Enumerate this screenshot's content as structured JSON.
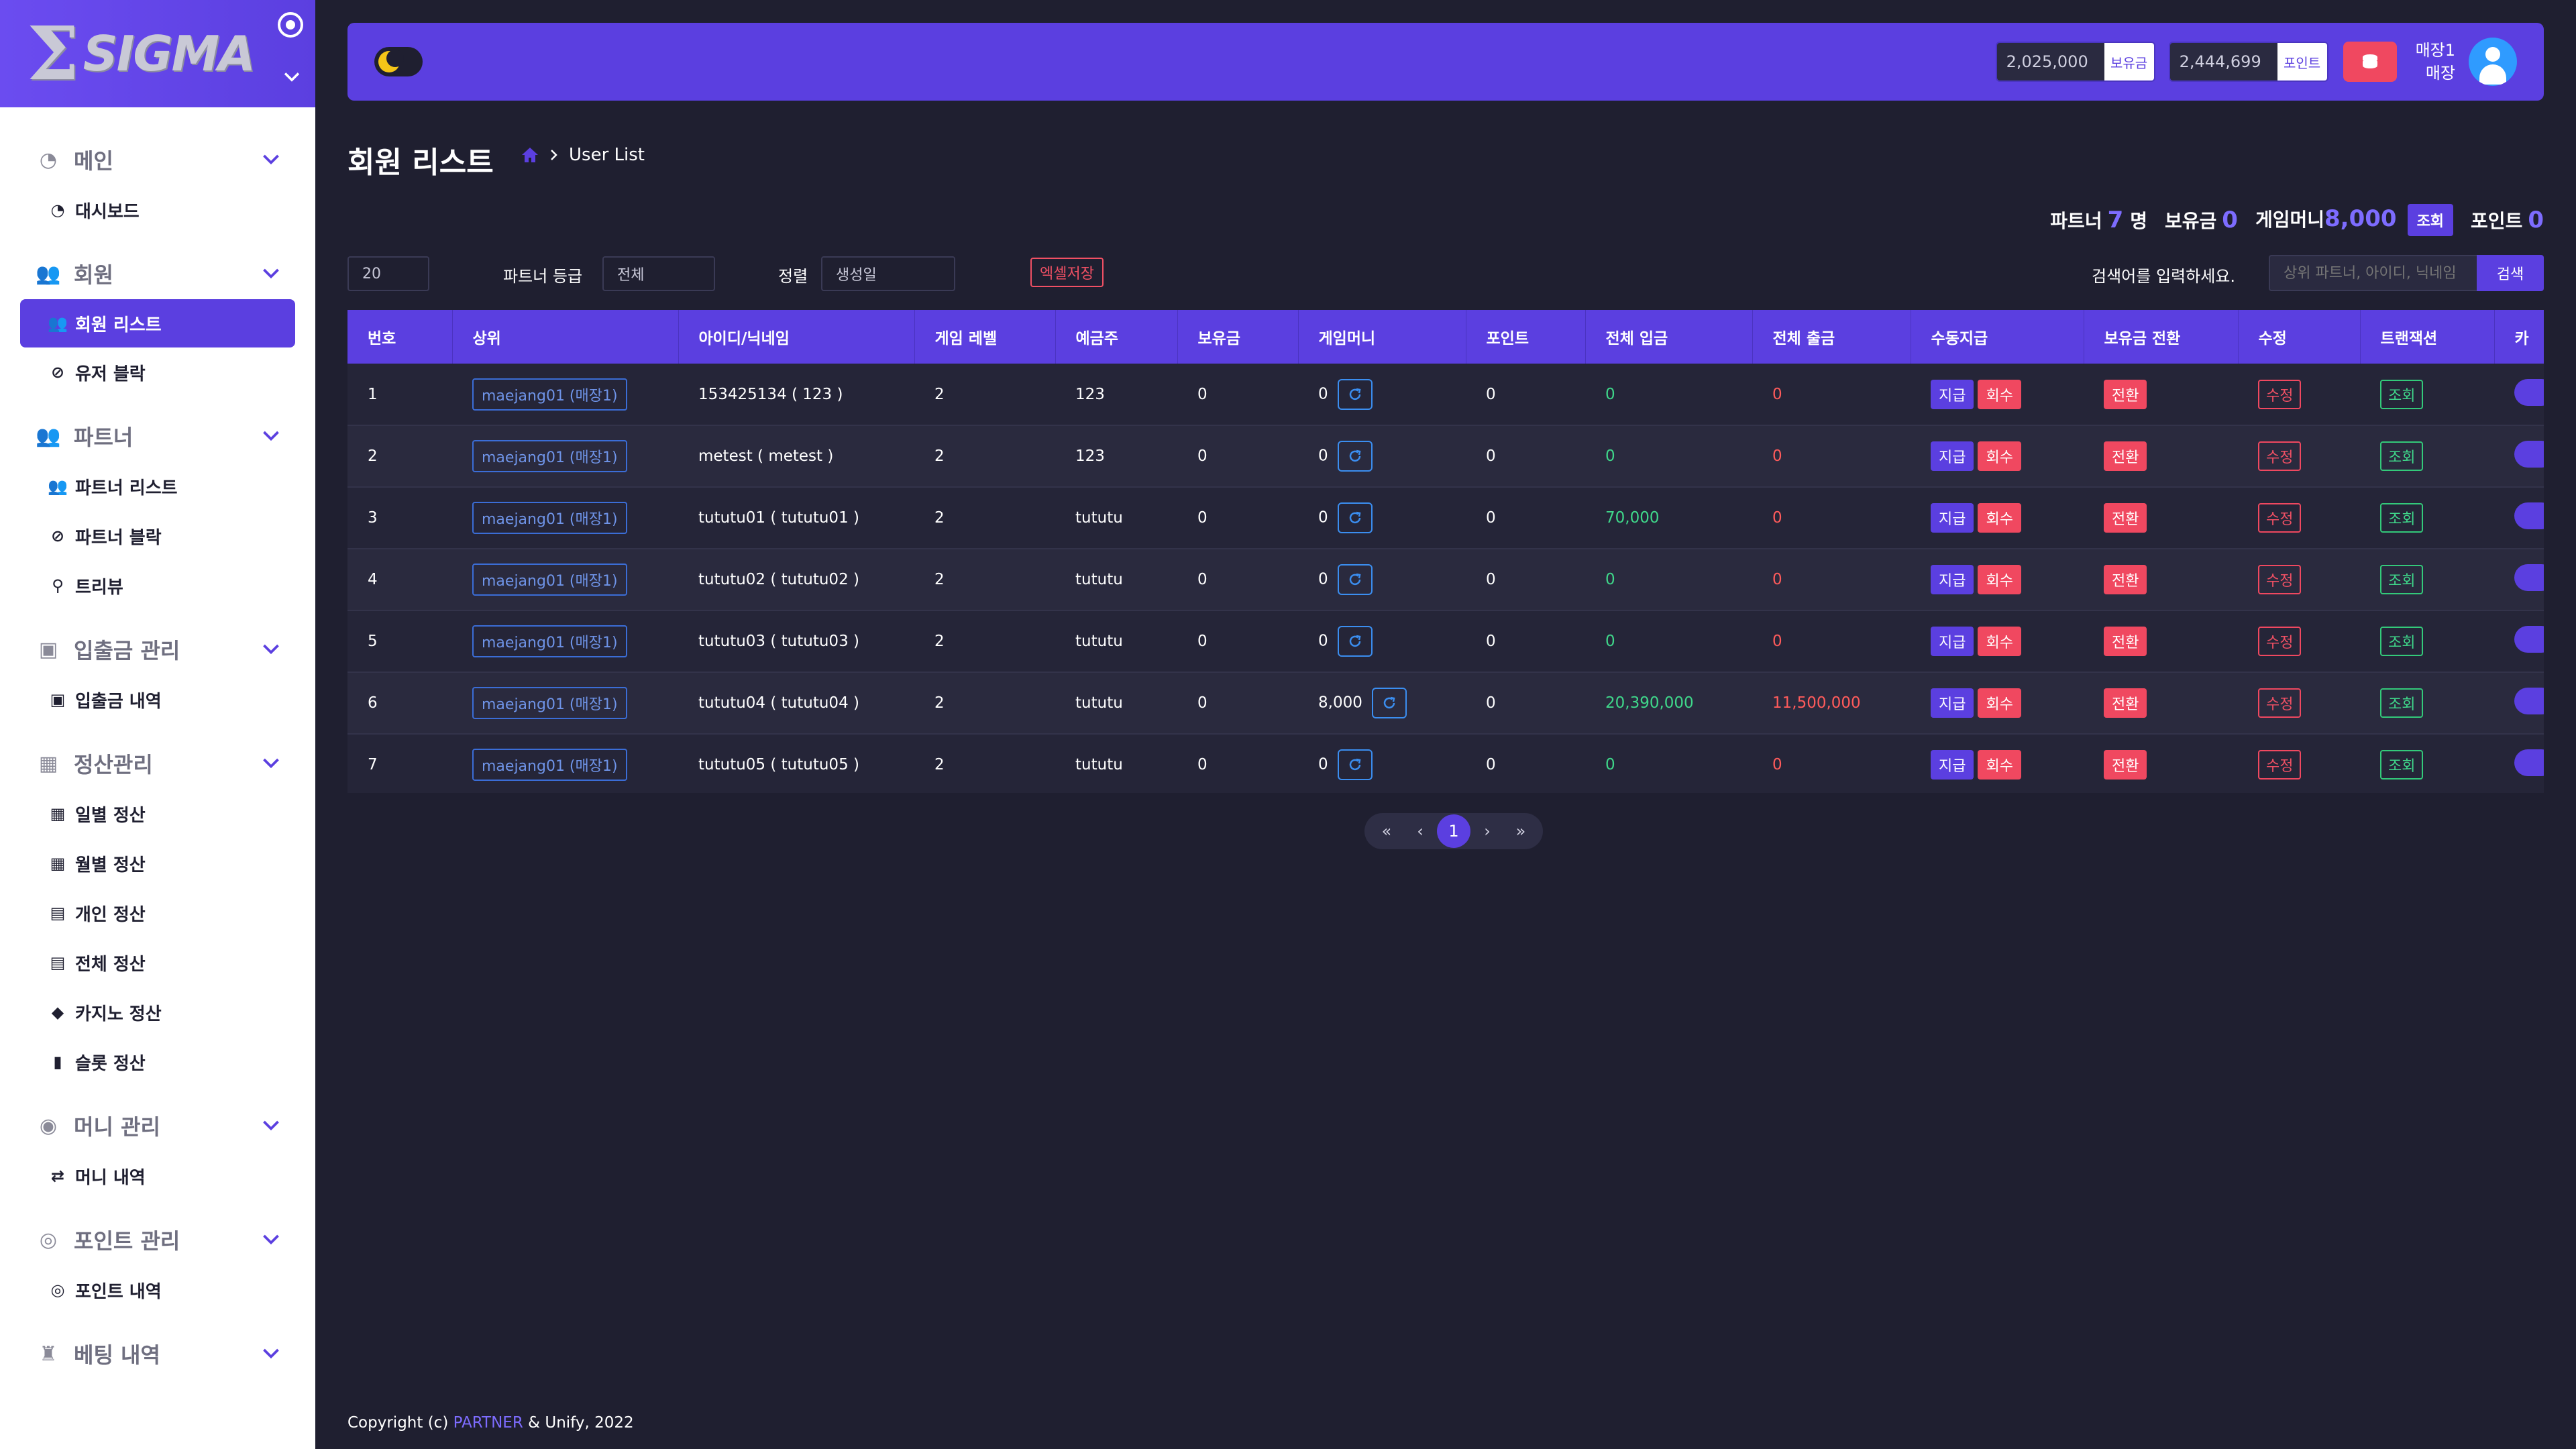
{
  "brand": {
    "sigma": "Σ",
    "name": "SIGMA"
  },
  "sidebar": {
    "groups": [
      {
        "label": "메인",
        "items": [
          {
            "label": "대시보드"
          }
        ]
      },
      {
        "label": "회원",
        "items": [
          {
            "label": "회원 리스트"
          },
          {
            "label": "유저 블락"
          }
        ]
      },
      {
        "label": "파트너",
        "items": [
          {
            "label": "파트너 리스트"
          },
          {
            "label": "파트너 블락"
          },
          {
            "label": "트리뷰"
          }
        ]
      },
      {
        "label": "입출금 관리",
        "items": [
          {
            "label": "입출금 내역"
          }
        ]
      },
      {
        "label": "정산관리",
        "items": [
          {
            "label": "일별 정산"
          },
          {
            "label": "월별 정산"
          },
          {
            "label": "개인 정산"
          },
          {
            "label": "전체 정산"
          },
          {
            "label": "카지노 정산"
          },
          {
            "label": "슬롯 정산"
          }
        ]
      },
      {
        "label": "머니 관리",
        "items": [
          {
            "label": "머니 내역"
          }
        ]
      },
      {
        "label": "포인트 관리",
        "items": [
          {
            "label": "포인트 내역"
          }
        ]
      },
      {
        "label": "베팅 내역",
        "items": []
      }
    ]
  },
  "header": {
    "balance_value": "2,025,000",
    "balance_label": "보유금",
    "point_value": "2,444,699",
    "point_label": "포인트",
    "user_line1": "매장1",
    "user_line2": "매장"
  },
  "page": {
    "title": "회원 리스트",
    "breadcrumb": "User List"
  },
  "summary": {
    "partner_label": "파트너",
    "partner_count": "7",
    "partner_unit": "명",
    "balance_label": "보유금",
    "balance_value": "0",
    "game_money_label": "게임머니",
    "game_money_value": "8,000",
    "lookup_label": "조회",
    "point_label": "포인트",
    "point_value": "0"
  },
  "filters": {
    "page_size": "20",
    "grade_label": "파트너 등급",
    "grade_value": "전체",
    "sort_label": "정렬",
    "sort_value": "생성일",
    "excel_label": "엑셀저장",
    "search_prompt": "검색어를 입력하세요.",
    "search_placeholder": "상위 파트너, 아이디, 닉네임",
    "search_button": "검색"
  },
  "table": {
    "headers": [
      "번호",
      "상위",
      "아이디/닉네임",
      "게임 레벨",
      "예금주",
      "보유금",
      "게임머니",
      "포인트",
      "전체 입금",
      "전체 출금",
      "수동지급",
      "보유금 전환",
      "수정",
      "트랜잭션",
      "카"
    ],
    "action_labels": {
      "give": "지급",
      "take": "회수",
      "convert": "전환",
      "edit": "수정",
      "view": "조회"
    },
    "rows": [
      {
        "no": "1",
        "parent": "maejang01 (매장1)",
        "id": "153425134 ( 123 )",
        "level": "2",
        "holder": "123",
        "balance": "0",
        "game_money": "0",
        "point": "0",
        "deposit": "0",
        "withdraw": "0"
      },
      {
        "no": "2",
        "parent": "maejang01 (매장1)",
        "id": "metest ( metest )",
        "level": "2",
        "holder": "123",
        "balance": "0",
        "game_money": "0",
        "point": "0",
        "deposit": "0",
        "withdraw": "0"
      },
      {
        "no": "3",
        "parent": "maejang01 (매장1)",
        "id": "tututu01 ( tututu01 )",
        "level": "2",
        "holder": "tututu",
        "balance": "0",
        "game_money": "0",
        "point": "0",
        "deposit": "70,000",
        "withdraw": "0"
      },
      {
        "no": "4",
        "parent": "maejang01 (매장1)",
        "id": "tututu02 ( tututu02 )",
        "level": "2",
        "holder": "tututu",
        "balance": "0",
        "game_money": "0",
        "point": "0",
        "deposit": "0",
        "withdraw": "0"
      },
      {
        "no": "5",
        "parent": "maejang01 (매장1)",
        "id": "tututu03 ( tututu03 )",
        "level": "2",
        "holder": "tututu",
        "balance": "0",
        "game_money": "0",
        "point": "0",
        "deposit": "0",
        "withdraw": "0"
      },
      {
        "no": "6",
        "parent": "maejang01 (매장1)",
        "id": "tututu04 ( tututu04 )",
        "level": "2",
        "holder": "tututu",
        "balance": "0",
        "game_money": "8,000",
        "point": "0",
        "deposit": "20,390,000",
        "withdraw": "11,500,000"
      },
      {
        "no": "7",
        "parent": "maejang01 (매장1)",
        "id": "tututu05 ( tututu05 )",
        "level": "2",
        "holder": "tututu",
        "balance": "0",
        "game_money": "0",
        "point": "0",
        "deposit": "0",
        "withdraw": "0"
      }
    ]
  },
  "pagination": {
    "first": "«",
    "prev": "‹",
    "current": "1",
    "next": "›",
    "last": "»"
  },
  "footer": {
    "prefix": "Copyright (c) ",
    "brand": "PARTNER",
    "suffix": " & Unify, 2022"
  },
  "colors": {
    "accent": "#5b3fe0",
    "danger": "#f04860",
    "success": "#3fd78a",
    "background": "#1f1f30"
  }
}
